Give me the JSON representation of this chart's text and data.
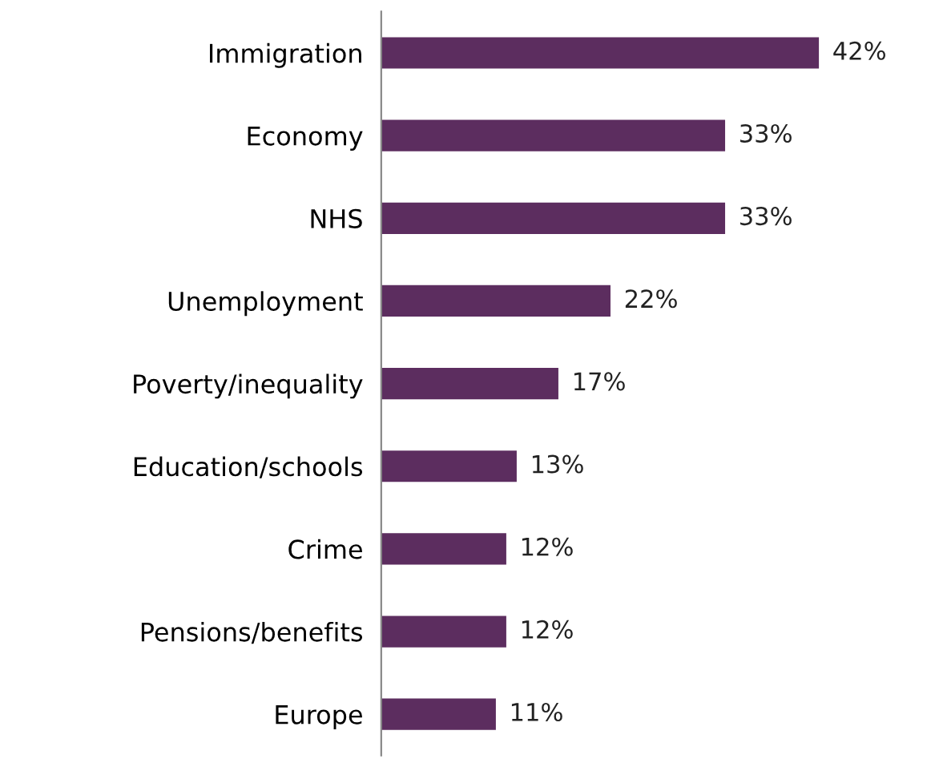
{
  "chart_data": {
    "type": "bar",
    "orientation": "horizontal",
    "categories": [
      "Immigration",
      "Economy",
      "NHS",
      "Unemployment",
      "Poverty/inequality",
      "Education/schools",
      "Crime",
      "Pensions/benefits",
      "Europe"
    ],
    "values": [
      42,
      33,
      33,
      22,
      17,
      13,
      12,
      12,
      11
    ],
    "value_labels": [
      "42%",
      "33%",
      "33%",
      "22%",
      "17%",
      "13%",
      "12%",
      "12%",
      "11%"
    ],
    "color": "#5c2d5f",
    "grid": false,
    "legend": false
  }
}
